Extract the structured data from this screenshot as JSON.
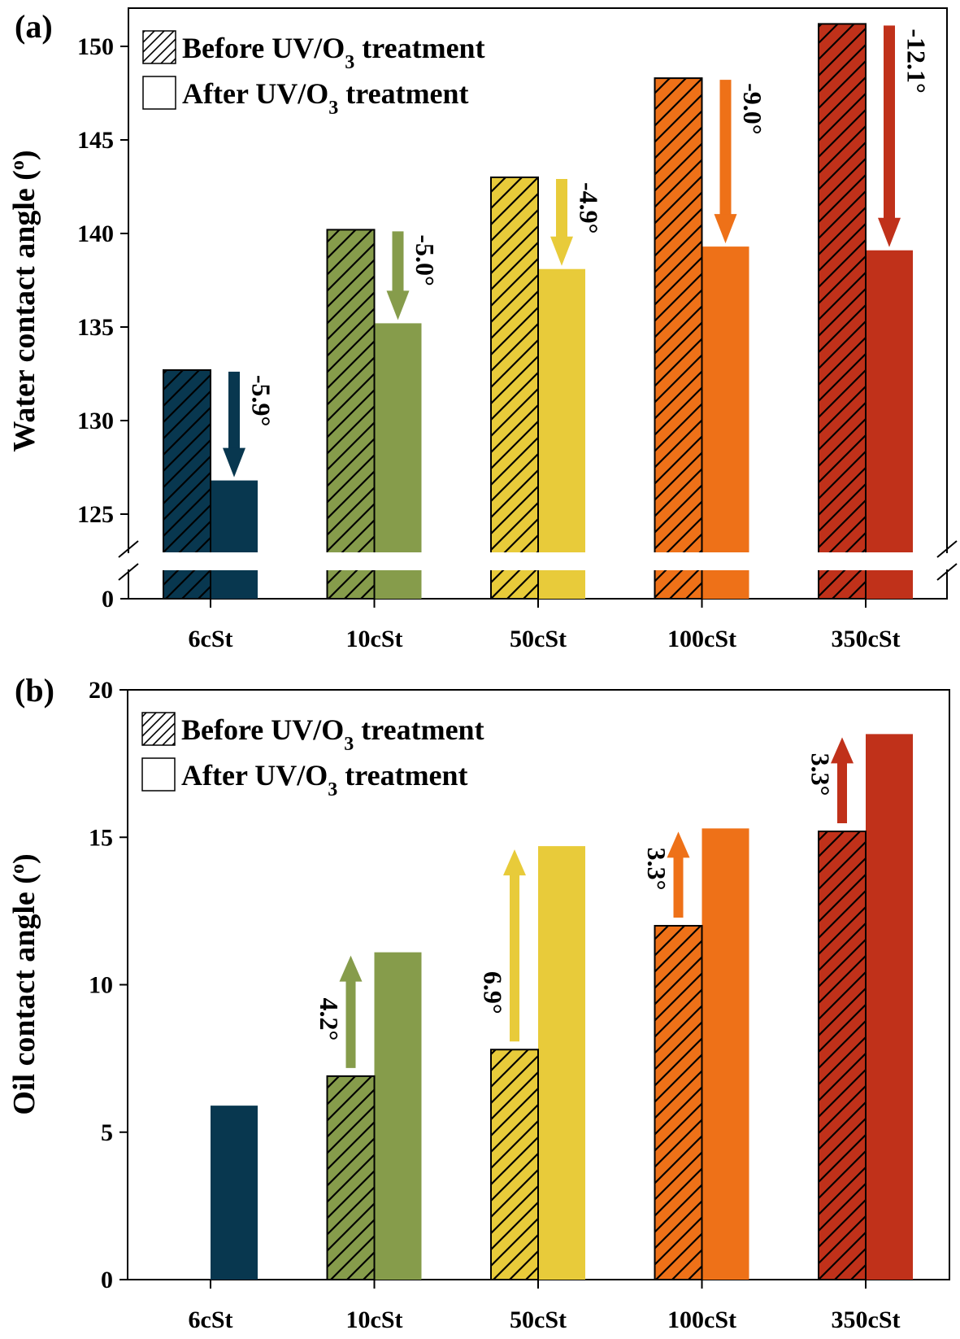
{
  "colors": {
    "6cSt": "#08374F",
    "10cSt": "#869C4B",
    "50cSt": "#E8CB3A",
    "100cSt": "#EE7118",
    "350cSt": "#C0311A"
  },
  "chart_data": [
    {
      "type": "bar",
      "panel_label": "(a)",
      "title": "",
      "xlabel": "",
      "ylabel": "Water contact angle (°)",
      "ylabel_main": "Water contact angle (",
      "ylabel_sup": "o",
      "ylabel_end": ")",
      "categories": [
        "6cSt",
        "10cSt",
        "50cSt",
        "100cSt",
        "350cSt"
      ],
      "series": [
        {
          "name": "Before UV/O3 treatment",
          "pattern": "hatched",
          "values": [
            132.7,
            140.2,
            143.0,
            148.3,
            151.2
          ]
        },
        {
          "name": "After UV/O3 treatment",
          "pattern": "solid",
          "values": [
            126.8,
            135.2,
            138.1,
            139.3,
            139.1
          ]
        }
      ],
      "annotations": [
        "-5.9°",
        "-5.0°",
        "-4.9°",
        "-9.0°",
        "-12.1°"
      ],
      "arrow_direction": "down",
      "yticks": [
        "0",
        "125",
        "130",
        "135",
        "140",
        "145",
        "150"
      ],
      "ylim": [
        121.5,
        151.5
      ],
      "axis_break": true,
      "legend": {
        "position": "top-left",
        "entries": [
          {
            "pre": "Before UV/O",
            "sub": "3",
            "post": " treatment",
            "pattern": "hatched"
          },
          {
            "pre": "After UV/O",
            "sub": "3",
            "post": " treatment",
            "pattern": "solid"
          }
        ]
      },
      "grid": false
    },
    {
      "type": "bar",
      "panel_label": "(b)",
      "title": "",
      "xlabel": "",
      "ylabel": "Oil contact angle (°)",
      "ylabel_main": "Oil contact angle (",
      "ylabel_sup": "o",
      "ylabel_end": ")",
      "categories": [
        "6cSt",
        "10cSt",
        "50cSt",
        "100cSt",
        "350cSt"
      ],
      "series": [
        {
          "name": "Before UV/O3 treatment",
          "pattern": "hatched",
          "values": [
            null,
            6.9,
            7.8,
            12.0,
            15.2
          ]
        },
        {
          "name": "After UV/O3 treatment",
          "pattern": "solid",
          "values": [
            5.9,
            11.1,
            14.7,
            15.3,
            18.5
          ]
        }
      ],
      "annotations": [
        "",
        "4.2°",
        "6.9°",
        "3.3°",
        "3.3°"
      ],
      "arrow_direction": "up",
      "yticks": [
        "0",
        "5",
        "10",
        "15",
        "20"
      ],
      "ylim": [
        0,
        20
      ],
      "axis_break": false,
      "legend": {
        "position": "top-left",
        "entries": [
          {
            "pre": "Before UV/O",
            "sub": "3",
            "post": " treatment",
            "pattern": "hatched"
          },
          {
            "pre": "After UV/O",
            "sub": "3",
            "post": " treatment",
            "pattern": "solid"
          }
        ]
      },
      "grid": false
    }
  ]
}
